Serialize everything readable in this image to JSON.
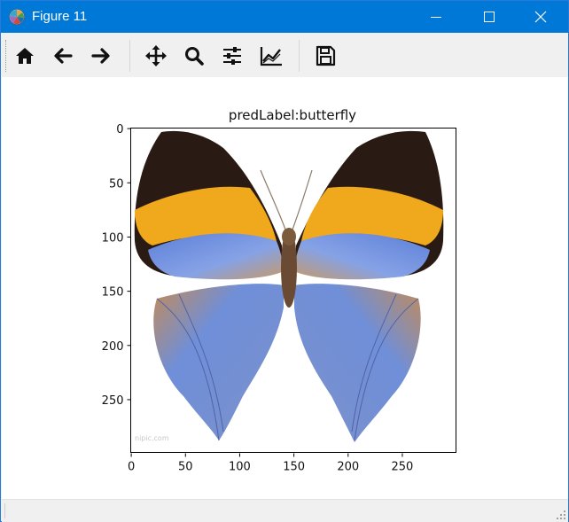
{
  "window": {
    "title": "Figure 11",
    "icons": {
      "app": "matplotlib-icon",
      "minimize": "minimize-icon",
      "maximize": "maximize-icon",
      "close": "close-icon"
    }
  },
  "toolbar": {
    "buttons": [
      {
        "id": "home",
        "icon": "home-icon"
      },
      {
        "id": "back",
        "icon": "arrow-left-icon"
      },
      {
        "id": "forward",
        "icon": "arrow-right-icon"
      },
      {
        "id": "pan",
        "icon": "move-icon"
      },
      {
        "id": "zoom",
        "icon": "magnifier-icon"
      },
      {
        "id": "subplots",
        "icon": "sliders-icon"
      },
      {
        "id": "customize",
        "icon": "line-chart-icon"
      },
      {
        "id": "save",
        "icon": "floppy-disk-icon"
      }
    ]
  },
  "figure": {
    "title": "predLabel:butterfly",
    "xticks": [
      "0",
      "50",
      "100",
      "150",
      "200",
      "250"
    ],
    "yticks": [
      "0",
      "50",
      "100",
      "150",
      "200",
      "250"
    ],
    "image_subject": "butterfly",
    "watermark_text": "nipic.com"
  }
}
